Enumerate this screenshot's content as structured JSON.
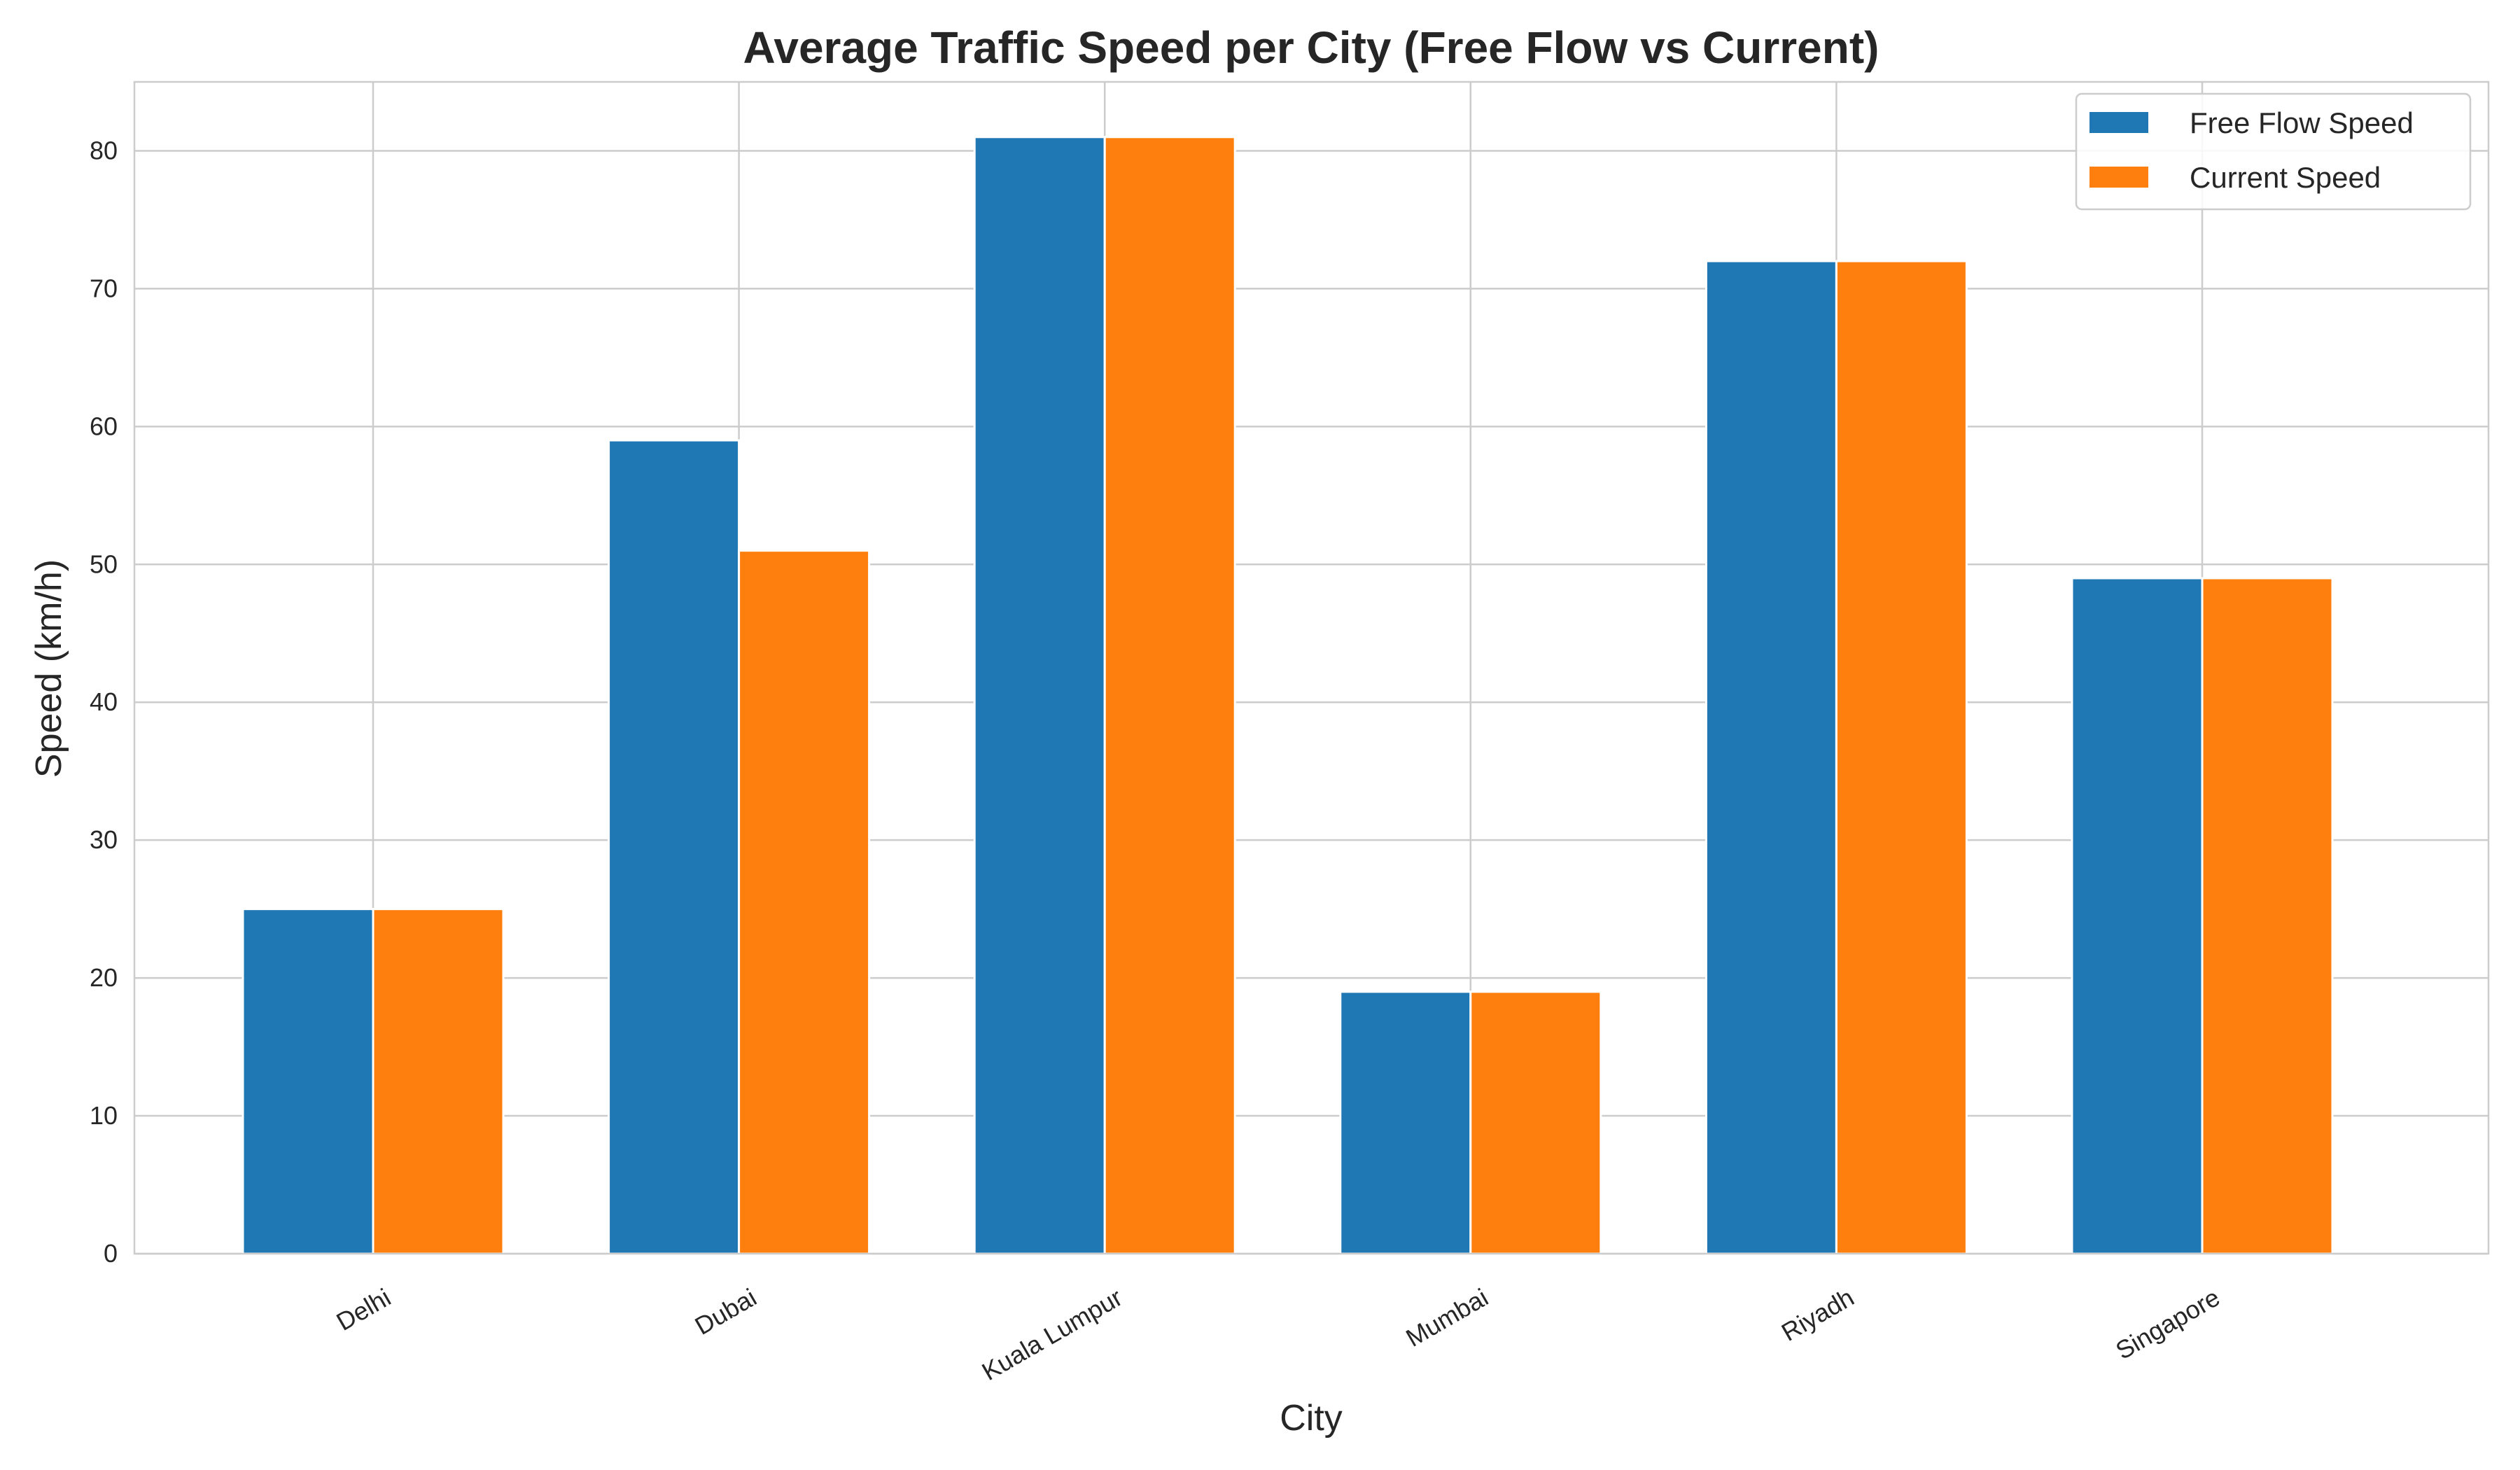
{
  "chart_data": {
    "type": "bar",
    "title": "Average Traffic Speed per City (Free Flow vs Current)",
    "xlabel": "City",
    "ylabel": "Speed (km/h)",
    "categories": [
      "Delhi",
      "Dubai",
      "Kuala Lumpur",
      "Mumbai",
      "Riyadh",
      "Singapore"
    ],
    "series": [
      {
        "name": "Free Flow Speed",
        "color": "#1f77b4",
        "values": [
          25,
          59,
          81,
          19,
          72,
          49
        ]
      },
      {
        "name": "Current Speed",
        "color": "#ff7f0e",
        "values": [
          25,
          51,
          81,
          19,
          72,
          49
        ]
      }
    ],
    "ylim": [
      0,
      85
    ],
    "yticks": [
      0,
      10,
      20,
      30,
      40,
      50,
      60,
      70,
      80
    ],
    "grid": true,
    "legend_position": "top-right",
    "xtick_rotation": "30 degrees"
  }
}
